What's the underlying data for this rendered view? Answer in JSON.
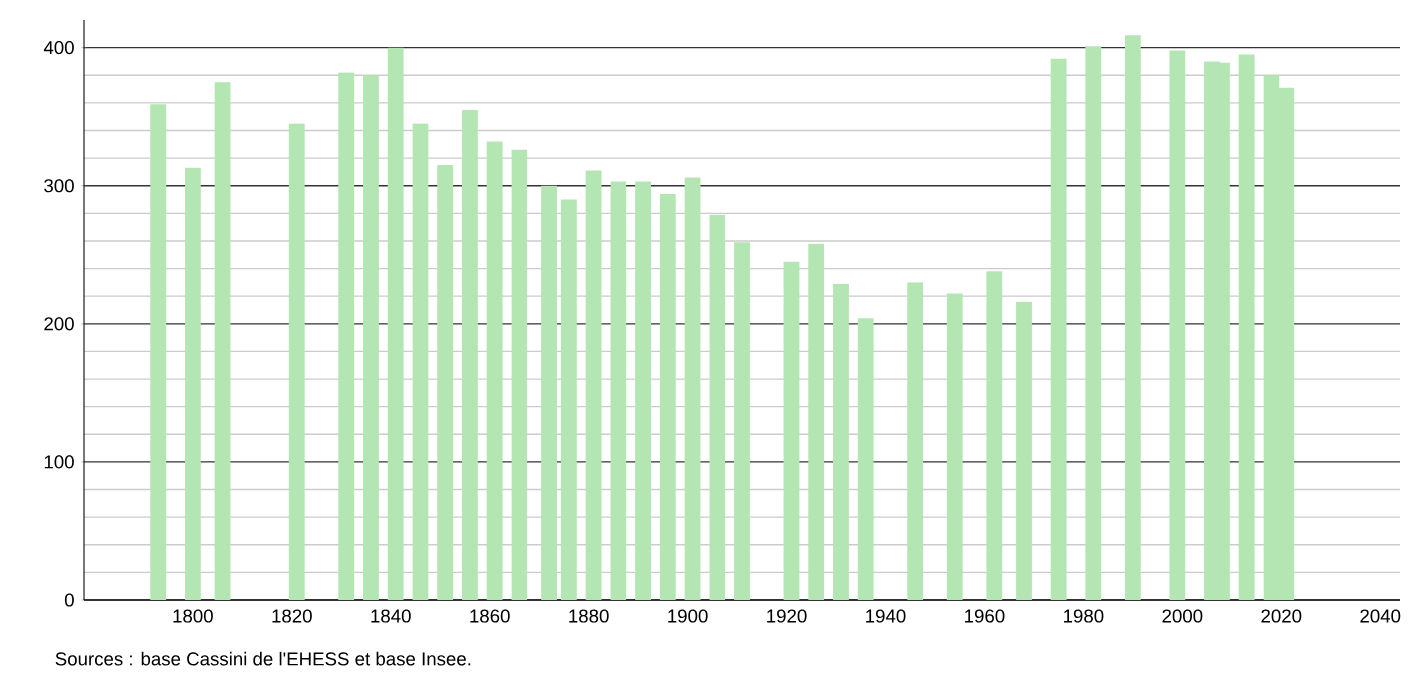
{
  "chart_data": {
    "type": "bar",
    "color": "#b3e6b3",
    "x": [
      1793,
      1800,
      1806,
      1821,
      1831,
      1836,
      1841,
      1846,
      1851,
      1856,
      1861,
      1866,
      1872,
      1876,
      1881,
      1886,
      1891,
      1896,
      1901,
      1906,
      1911,
      1921,
      1926,
      1931,
      1936,
      1946,
      1954,
      1962,
      1968,
      1975,
      1982,
      1990,
      1999,
      2006,
      2008,
      2013,
      2018,
      2021
    ],
    "values": [
      359,
      313,
      375,
      345,
      382,
      380,
      400,
      345,
      315,
      355,
      332,
      326,
      300,
      290,
      311,
      303,
      303,
      294,
      306,
      279,
      259,
      245,
      258,
      229,
      204,
      230,
      222,
      238,
      216,
      392,
      401,
      409,
      398,
      390,
      389,
      395,
      380,
      371
    ],
    "xlim": [
      1778,
      2044
    ],
    "ylim": [
      0,
      420
    ],
    "xticks": [
      1800,
      1820,
      1840,
      1860,
      1880,
      1900,
      1920,
      1940,
      1960,
      1980,
      2000,
      2020,
      2040
    ],
    "yticks": [
      0,
      100,
      200,
      300,
      400
    ],
    "grid": "y",
    "annotations": [
      "Sources : base Cassini de l'EHESS et base Insee."
    ]
  }
}
